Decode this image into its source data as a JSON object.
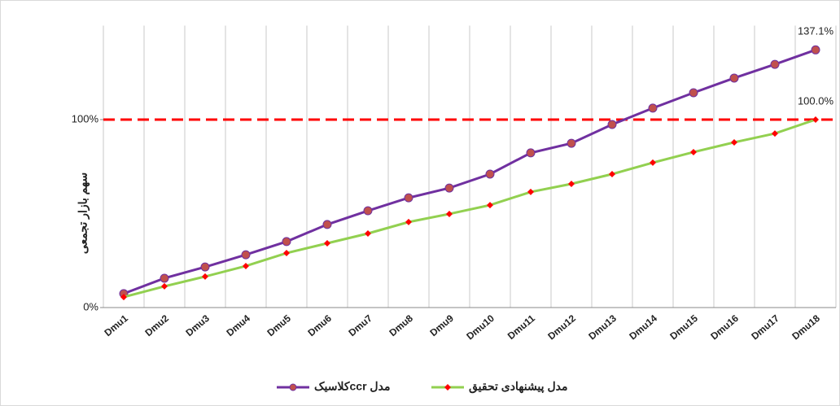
{
  "chart_data": {
    "type": "line",
    "y_axis_label": "سهم بازار تجمعی",
    "categories": [
      "Dmu1",
      "Dmu2",
      "Dmu3",
      "Dmu4",
      "Dmu5",
      "Dmu6",
      "Dmu7",
      "Dmu8",
      "Dmu9",
      "Dmu10",
      "Dmu11",
      "Dmu12",
      "Dmu13",
      "Dmu14",
      "Dmu15",
      "Dmu16",
      "Dmu17",
      "Dmu18"
    ],
    "series": [
      {
        "name": "مدل ccrکلاسیک",
        "color": "#7030a0",
        "marker_color": "#c0504d",
        "values": [
          7.4,
          15.6,
          21.6,
          28.1,
          35.1,
          44.2,
          51.5,
          58.4,
          63.6,
          71.0,
          82.3,
          87.4,
          97.4,
          106.1,
          114.3,
          122.1,
          129.4,
          137.1
        ],
        "value_labels": [
          null,
          null,
          null,
          null,
          null,
          null,
          null,
          null,
          null,
          null,
          null,
          null,
          null,
          null,
          null,
          null,
          null,
          "137.1%"
        ]
      },
      {
        "name": "مدل پیشنهادی تحقیق",
        "color": "#92d050",
        "marker_color": "#ff0000",
        "values": [
          5.6,
          11.3,
          16.5,
          22.1,
          29.0,
          34.2,
          39.4,
          45.5,
          49.8,
          54.5,
          61.5,
          65.8,
          71.0,
          77.1,
          82.7,
          87.9,
          92.6,
          100.0
        ],
        "value_labels": [
          null,
          null,
          null,
          null,
          null,
          null,
          null,
          null,
          null,
          null,
          null,
          null,
          null,
          null,
          null,
          null,
          null,
          "100.0%"
        ]
      }
    ],
    "reference_line": {
      "value": 100,
      "color": "#ff0000"
    },
    "ylim": [
      0,
      150
    ],
    "yticks": [
      {
        "value": 0,
        "label": "0%"
      },
      {
        "value": 100,
        "label": "100%"
      }
    ],
    "grid": true
  }
}
